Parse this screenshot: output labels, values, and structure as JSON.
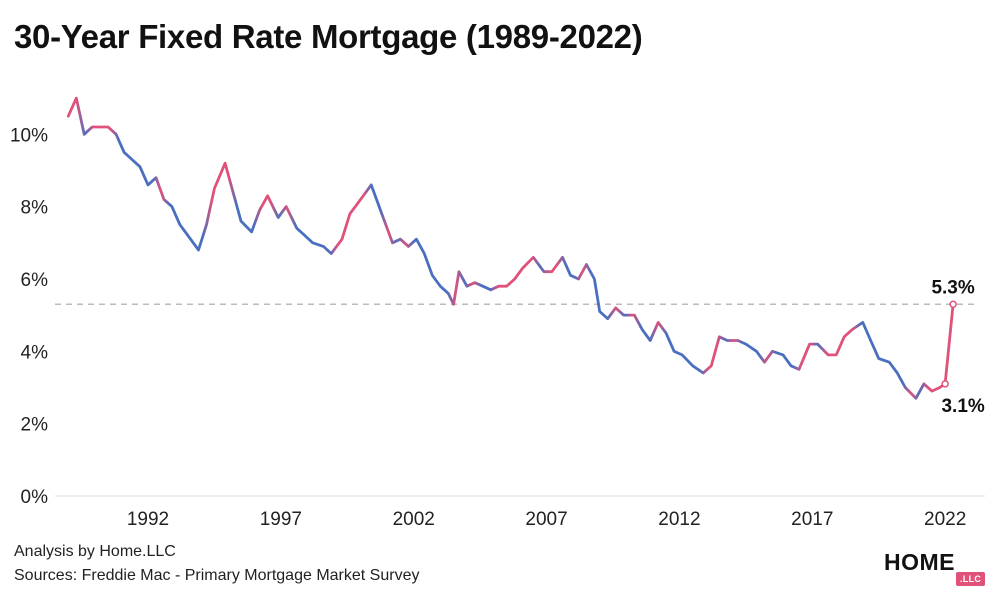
{
  "title": "30-Year Fixed Rate Mortgage (1989-2022)",
  "footer": {
    "analysis": "Analysis by Home.LLC",
    "sources": "Sources: Freddie Mac - Primary Mortgage Market Survey"
  },
  "logo": {
    "word": "HOME",
    "badge": ".LLC"
  },
  "colors": {
    "line_high": "#e0527a",
    "line_low": "#4a6fc1",
    "reference": "#bbbbbb",
    "axis": "#dddddd"
  },
  "chart_data": {
    "type": "line",
    "title": "30-Year Fixed Rate Mortgage (1989-2022)",
    "xlabel": "",
    "ylabel": "",
    "x_ticks": [
      1992,
      1997,
      2002,
      2007,
      2012,
      2017,
      2022
    ],
    "y_ticks": [
      0,
      2,
      4,
      6,
      8,
      10
    ],
    "y_tick_labels": [
      "0%",
      "2%",
      "4%",
      "6%",
      "8%",
      "10%"
    ],
    "xlim": [
      1988.5,
      2023.5
    ],
    "ylim": [
      0,
      11.5
    ],
    "grid": false,
    "reference_line": {
      "y": 5.3,
      "style": "dashed"
    },
    "annotations": [
      {
        "text": "5.3%",
        "x": 2022.3,
        "y": 5.3
      },
      {
        "text": "3.1%",
        "x": 2022.0,
        "y": 3.1
      }
    ],
    "series": [
      {
        "x": [
          1989.0,
          1989.3,
          1989.6,
          1989.9,
          1990.2,
          1990.5,
          1990.8,
          1991.1,
          1991.4,
          1991.7,
          1992.0,
          1992.3,
          1992.6,
          1992.9,
          1993.2,
          1993.5,
          1993.9,
          1994.2,
          1994.5,
          1994.9,
          1995.2,
          1995.5,
          1995.9,
          1996.2,
          1996.5,
          1996.9,
          1997.2,
          1997.6,
          1997.9,
          1998.2,
          1998.6,
          1998.9,
          1999.3,
          1999.6,
          2000.0,
          2000.4,
          2000.8,
          2001.2,
          2001.5,
          2001.8,
          2002.1,
          2002.4,
          2002.7,
          2003.0,
          2003.3,
          2003.5,
          2003.7,
          2004.0,
          2004.3,
          2004.6,
          2004.9,
          2005.2,
          2005.5,
          2005.8,
          2006.1,
          2006.5,
          2006.9,
          2007.2,
          2007.6,
          2007.9,
          2008.2,
          2008.5,
          2008.8,
          2009.0,
          2009.3,
          2009.6,
          2009.9,
          2010.3,
          2010.6,
          2010.9,
          2011.2,
          2011.5,
          2011.8,
          2012.1,
          2012.5,
          2012.9,
          2013.2,
          2013.5,
          2013.8,
          2014.2,
          2014.5,
          2014.9,
          2015.2,
          2015.5,
          2015.9,
          2016.2,
          2016.5,
          2016.9,
          2017.2,
          2017.6,
          2017.9,
          2018.2,
          2018.5,
          2018.9,
          2019.2,
          2019.5,
          2019.9,
          2020.2,
          2020.5,
          2020.9,
          2021.2,
          2021.5,
          2021.8,
          2022.0,
          2022.15,
          2022.3
        ],
        "y": [
          10.5,
          11.0,
          10.0,
          10.2,
          10.2,
          10.2,
          10.0,
          9.5,
          9.3,
          9.1,
          8.6,
          8.8,
          8.2,
          8.0,
          7.5,
          7.2,
          6.8,
          7.5,
          8.5,
          9.2,
          8.4,
          7.6,
          7.3,
          7.9,
          8.3,
          7.7,
          8.0,
          7.4,
          7.2,
          7.0,
          6.9,
          6.7,
          7.1,
          7.8,
          8.2,
          8.6,
          7.8,
          7.0,
          7.1,
          6.9,
          7.1,
          6.7,
          6.1,
          5.8,
          5.6,
          5.3,
          6.2,
          5.8,
          5.9,
          5.8,
          5.7,
          5.8,
          5.8,
          6.0,
          6.3,
          6.6,
          6.2,
          6.2,
          6.6,
          6.1,
          6.0,
          6.4,
          6.0,
          5.1,
          4.9,
          5.2,
          5.0,
          5.0,
          4.6,
          4.3,
          4.8,
          4.5,
          4.0,
          3.9,
          3.6,
          3.4,
          3.6,
          4.4,
          4.3,
          4.3,
          4.2,
          4.0,
          3.7,
          4.0,
          3.9,
          3.6,
          3.5,
          4.2,
          4.2,
          3.9,
          3.9,
          4.4,
          4.6,
          4.8,
          4.3,
          3.8,
          3.7,
          3.4,
          3.0,
          2.7,
          3.1,
          2.9,
          3.0,
          3.1,
          4.2,
          5.3
        ]
      }
    ]
  }
}
